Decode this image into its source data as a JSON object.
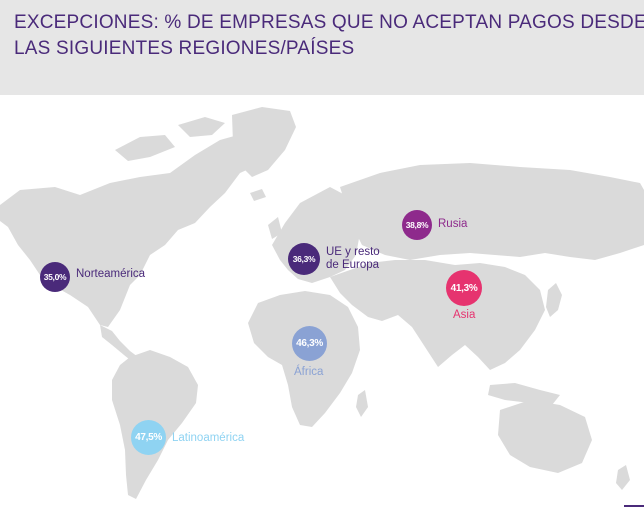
{
  "title": {
    "line1": "EXCEPCIONES: % DE EMPRESAS QUE NO ACEPTAN PAGOS DESDE",
    "line2": "LAS SIGUIENTES REGIONES/PAÍSES"
  },
  "colors": {
    "title": "#4a2a7a",
    "header_bg": "#e6e6e6",
    "land": "#dadada",
    "north_america": "#4a2a7a",
    "eu": "#4a2a7a",
    "russia": "#8e2a8c",
    "asia": "#e6336f",
    "africa": "#8aa2d4",
    "latin_america": "#8fd3f2"
  },
  "regions": {
    "north_america": {
      "value": "35,0%",
      "label": "Norteamérica"
    },
    "eu": {
      "value": "36,3%",
      "label_line1": "UE y resto",
      "label_line2": "de Europa"
    },
    "russia": {
      "value": "38,8%",
      "label": "Rusia"
    },
    "asia": {
      "value": "41,3%",
      "label": "Asia"
    },
    "africa": {
      "value": "46,3%",
      "label": "África"
    },
    "latin_america": {
      "value": "47,5%",
      "label": "Latinoamérica"
    }
  }
}
